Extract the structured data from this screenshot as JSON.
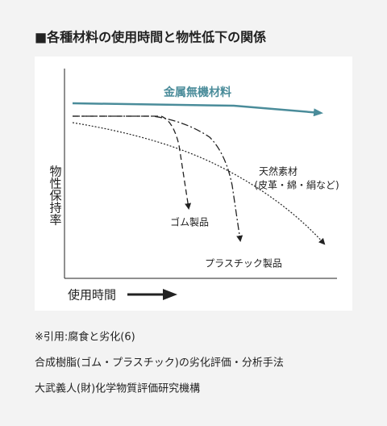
{
  "header": {
    "title": "■各種材料の使用時間と物性低下の関係"
  },
  "diagram": {
    "y_axis_label": "物性保持率",
    "x_axis_label": "使用時間",
    "curves": [
      {
        "label": "金属無機材料"
      },
      {
        "label": "ゴム製品"
      },
      {
        "label": "プラスチック製品"
      },
      {
        "label": "天然素材",
        "sublabel": "(皮革・綿・絹など)"
      }
    ]
  },
  "citation": {
    "lines": [
      "※引用:腐食と劣化(6)",
      "合成樹脂(ゴム・プラスチック)の劣化評価・分析手法",
      "大武義人(財)化学物質評価研究機構"
    ]
  }
}
